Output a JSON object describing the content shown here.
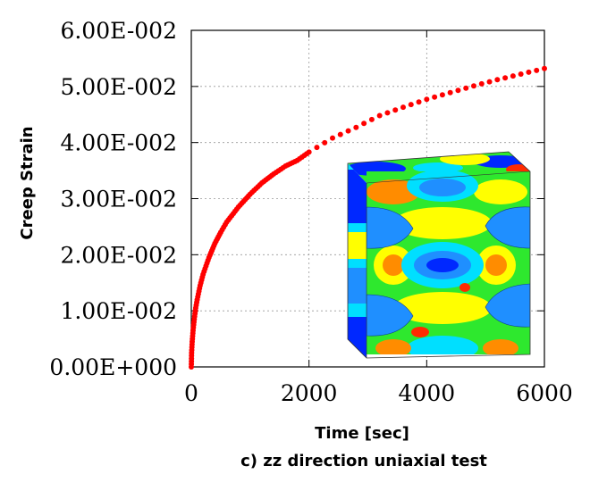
{
  "chart_data": {
    "type": "scatter",
    "title": "",
    "caption": "c) zz direction uniaxial test",
    "xlabel": "Time [sec]",
    "ylabel": "Creep Strain",
    "xlim": [
      0,
      6000
    ],
    "ylim": [
      0,
      0.06
    ],
    "x_ticks": [
      0,
      2000,
      4000,
      6000
    ],
    "x_tick_labels": [
      "0",
      "2000",
      "4000",
      "6000"
    ],
    "y_ticks": [
      0,
      0.01,
      0.02,
      0.03,
      0.04,
      0.05,
      0.06
    ],
    "y_tick_labels": [
      "0.00E+000",
      "1.00E-002",
      "2.00E-002",
      "3.00E-002",
      "4.00E-002",
      "5.00E-002",
      "6.00E-002"
    ],
    "grid": true,
    "legend": "none",
    "series": [
      {
        "color": "#ff0000",
        "points": [
          [
            0,
            0.0
          ],
          [
            5,
            0.0025
          ],
          [
            15,
            0.0045
          ],
          [
            30,
            0.0065
          ],
          [
            50,
            0.0085
          ],
          [
            75,
            0.0105
          ],
          [
            100,
            0.012
          ],
          [
            150,
            0.0145
          ],
          [
            200,
            0.0165
          ],
          [
            250,
            0.018
          ],
          [
            300,
            0.0195
          ],
          [
            400,
            0.022
          ],
          [
            500,
            0.024
          ],
          [
            600,
            0.0258
          ],
          [
            800,
            0.0285
          ],
          [
            1000,
            0.0308
          ],
          [
            1200,
            0.0328
          ],
          [
            1400,
            0.0344
          ],
          [
            1600,
            0.0358
          ],
          [
            1800,
            0.0368
          ],
          [
            2000,
            0.0383
          ],
          [
            2400,
            0.0408
          ],
          [
            2800,
            0.0427
          ],
          [
            3200,
            0.0448
          ],
          [
            3600,
            0.0463
          ],
          [
            4000,
            0.0477
          ],
          [
            4400,
            0.0489
          ],
          [
            4800,
            0.0501
          ],
          [
            5200,
            0.0512
          ],
          [
            5600,
            0.0522
          ],
          [
            6000,
            0.0532
          ]
        ]
      }
    ]
  },
  "inset": {
    "description_icon": "fem-cube-contour-image",
    "colors": {
      "red": "#ff2a00",
      "orange": "#ff8c00",
      "yellow": "#ffff00",
      "green": "#2ee82e",
      "cyan": "#00dfff",
      "blue": "#1f8fff",
      "darkblue": "#0028ff"
    }
  }
}
